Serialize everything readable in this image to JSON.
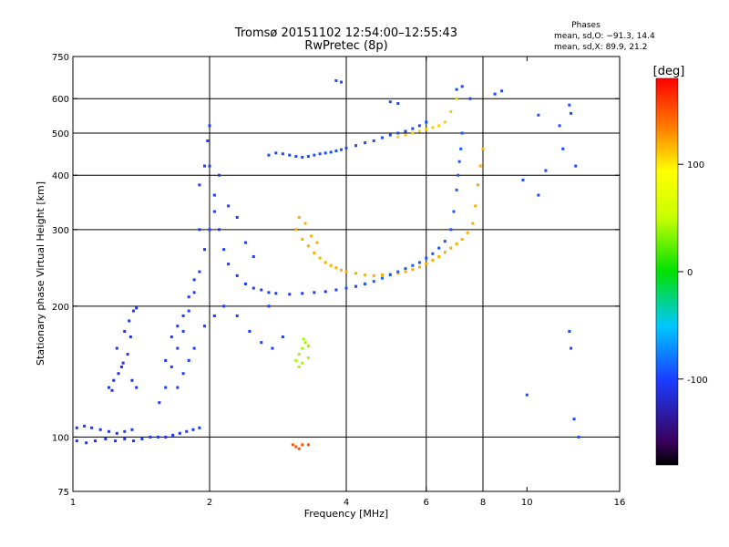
{
  "title": "Tromsø 20151102 12:54:00–12:55:43",
  "subtitle": "RwPretec (8p)",
  "phase_header": {
    "title": "Phases",
    "line_o": "mean, sd,O: −91.3, 14.4",
    "line_x": "mean, sd,X:  89.9, 21.2"
  },
  "chart_data": {
    "type": "scatter",
    "xlabel": "Frequency [MHz]",
    "ylabel": "Stationary phase Virtual Height [km]",
    "xscale": "log",
    "yscale": "log",
    "xlim": [
      1,
      16
    ],
    "ylim": [
      75,
      750
    ],
    "xticks": [
      1,
      2,
      4,
      6,
      8,
      10,
      16
    ],
    "xtick_labels": [
      "1",
      "2",
      "4",
      "6",
      "8",
      "10",
      "16"
    ],
    "xgrid": [
      2,
      4,
      6,
      8
    ],
    "yticks": [
      75,
      100,
      200,
      300,
      400,
      500,
      600,
      750
    ],
    "ytick_labels": [
      "75",
      "100",
      "200",
      "300",
      "400",
      "500",
      "600",
      "750"
    ],
    "ygrid": [
      100,
      200,
      300,
      400,
      500,
      600
    ],
    "colorbar": {
      "label": "[deg]",
      "range": [
        -180,
        180
      ],
      "ticks": [
        100,
        0,
        -100
      ],
      "tick_labels": [
        "100",
        "0",
        "-100"
      ],
      "colormap": "rainbow"
    },
    "series": [
      {
        "points": [
          [
            1.02,
            105
          ],
          [
            1.06,
            106
          ],
          [
            1.1,
            105
          ],
          [
            1.15,
            104
          ],
          [
            1.2,
            103
          ],
          [
            1.25,
            102
          ],
          [
            1.3,
            103
          ],
          [
            1.35,
            104
          ],
          [
            1.02,
            98
          ],
          [
            1.07,
            97
          ],
          [
            1.12,
            98
          ],
          [
            1.18,
            99
          ],
          [
            1.24,
            98
          ],
          [
            1.3,
            99
          ],
          [
            1.36,
            98
          ],
          [
            1.42,
            99
          ],
          [
            1.48,
            100
          ],
          [
            1.54,
            100
          ],
          [
            1.6,
            100
          ],
          [
            1.66,
            101
          ],
          [
            1.72,
            102
          ],
          [
            1.78,
            103
          ],
          [
            1.84,
            104
          ],
          [
            1.9,
            105
          ]
        ],
        "phase": -105
      },
      {
        "points": [
          [
            1.2,
            130
          ],
          [
            1.23,
            135
          ],
          [
            1.26,
            140
          ],
          [
            1.29,
            148
          ],
          [
            1.32,
            155
          ],
          [
            1.3,
            175
          ],
          [
            1.33,
            185
          ],
          [
            1.36,
            195
          ],
          [
            1.38,
            198
          ],
          [
            1.25,
            160
          ],
          [
            1.28,
            145
          ],
          [
            1.35,
            135
          ],
          [
            1.38,
            130
          ],
          [
            1.22,
            128
          ],
          [
            1.34,
            170
          ]
        ],
        "phase": -110
      },
      {
        "points": [
          [
            1.55,
            120
          ],
          [
            1.6,
            130
          ],
          [
            1.65,
            145
          ],
          [
            1.7,
            160
          ],
          [
            1.75,
            175
          ],
          [
            1.8,
            195
          ],
          [
            1.85,
            215
          ],
          [
            1.9,
            240
          ],
          [
            1.95,
            270
          ],
          [
            2.0,
            300
          ],
          [
            2.05,
            330
          ],
          [
            1.9,
            380
          ],
          [
            1.95,
            420
          ],
          [
            1.98,
            480
          ],
          [
            2.0,
            520
          ],
          [
            2.05,
            360
          ],
          [
            2.1,
            300
          ],
          [
            2.15,
            270
          ],
          [
            2.2,
            250
          ],
          [
            2.3,
            235
          ],
          [
            2.4,
            225
          ],
          [
            2.5,
            220
          ],
          [
            2.6,
            218
          ],
          [
            2.7,
            215
          ],
          [
            2.8,
            214
          ],
          [
            3.0,
            213
          ],
          [
            3.2,
            214
          ],
          [
            3.4,
            215
          ],
          [
            3.6,
            216
          ],
          [
            3.8,
            218
          ],
          [
            4.0,
            220
          ],
          [
            4.2,
            222
          ],
          [
            4.4,
            225
          ],
          [
            1.7,
            130
          ],
          [
            1.75,
            140
          ],
          [
            1.8,
            150
          ],
          [
            1.85,
            160
          ],
          [
            1.95,
            180
          ],
          [
            2.05,
            190
          ],
          [
            2.15,
            200
          ],
          [
            2.3,
            190
          ],
          [
            2.45,
            175
          ],
          [
            2.6,
            165
          ],
          [
            2.75,
            160
          ],
          [
            2.9,
            170
          ],
          [
            2.7,
            200
          ],
          [
            2.5,
            260
          ],
          [
            2.4,
            280
          ],
          [
            2.3,
            320
          ],
          [
            2.2,
            340
          ],
          [
            2.1,
            400
          ],
          [
            2.0,
            420
          ],
          [
            1.9,
            300
          ],
          [
            1.85,
            230
          ],
          [
            1.8,
            210
          ],
          [
            1.75,
            190
          ],
          [
            1.7,
            180
          ],
          [
            1.65,
            170
          ],
          [
            1.6,
            150
          ]
        ],
        "phase": -100
      },
      {
        "points": [
          [
            2.7,
            445
          ],
          [
            2.8,
            450
          ],
          [
            2.9,
            448
          ],
          [
            3.0,
            445
          ],
          [
            3.1,
            442
          ],
          [
            3.2,
            440
          ],
          [
            3.3,
            442
          ],
          [
            3.4,
            445
          ],
          [
            3.5,
            448
          ],
          [
            3.6,
            450
          ],
          [
            3.7,
            452
          ],
          [
            3.8,
            455
          ],
          [
            3.9,
            458
          ],
          [
            4.0,
            462
          ],
          [
            4.2,
            468
          ],
          [
            4.4,
            475
          ],
          [
            4.6,
            480
          ],
          [
            4.8,
            488
          ],
          [
            5.0,
            495
          ],
          [
            5.2,
            500
          ],
          [
            5.4,
            505
          ],
          [
            5.6,
            512
          ],
          [
            5.8,
            520
          ],
          [
            6.0,
            530
          ]
        ],
        "phase": -95
      },
      {
        "points": [
          [
            5.2,
            490
          ],
          [
            5.4,
            495
          ],
          [
            5.6,
            500
          ],
          [
            5.8,
            505
          ],
          [
            6.0,
            510
          ],
          [
            6.2,
            515
          ],
          [
            6.4,
            520
          ],
          [
            6.6,
            530
          ],
          [
            6.8,
            560
          ],
          [
            7.0,
            600
          ]
        ],
        "phase": 110
      },
      {
        "points": [
          [
            3.1,
            300
          ],
          [
            3.2,
            285
          ],
          [
            3.3,
            275
          ],
          [
            3.4,
            265
          ],
          [
            3.5,
            258
          ],
          [
            3.6,
            252
          ],
          [
            3.7,
            248
          ],
          [
            3.8,
            245
          ],
          [
            3.9,
            242
          ],
          [
            4.0,
            240
          ],
          [
            4.2,
            238
          ],
          [
            4.4,
            236
          ],
          [
            4.6,
            235
          ],
          [
            4.8,
            236
          ],
          [
            5.0,
            237
          ],
          [
            5.2,
            238
          ],
          [
            5.4,
            240
          ],
          [
            5.6,
            243
          ],
          [
            5.8,
            246
          ],
          [
            6.0,
            250
          ],
          [
            6.2,
            255
          ],
          [
            6.4,
            260
          ],
          [
            6.6,
            266
          ],
          [
            6.8,
            272
          ],
          [
            7.0,
            278
          ],
          [
            7.2,
            285
          ],
          [
            7.4,
            295
          ],
          [
            7.6,
            310
          ],
          [
            7.7,
            340
          ],
          [
            7.8,
            380
          ],
          [
            7.9,
            420
          ],
          [
            8.0,
            460
          ],
          [
            3.15,
            320
          ],
          [
            3.25,
            310
          ],
          [
            3.35,
            290
          ],
          [
            3.45,
            280
          ]
        ],
        "phase": 120
      },
      {
        "points": [
          [
            4.0,
            220
          ],
          [
            4.2,
            222
          ],
          [
            4.4,
            225
          ],
          [
            4.6,
            228
          ],
          [
            4.8,
            232
          ],
          [
            5.0,
            236
          ],
          [
            5.2,
            240
          ],
          [
            5.4,
            244
          ],
          [
            5.6,
            248
          ],
          [
            5.8,
            252
          ],
          [
            6.0,
            258
          ],
          [
            6.2,
            264
          ],
          [
            6.4,
            272
          ],
          [
            6.6,
            282
          ],
          [
            6.8,
            300
          ],
          [
            6.9,
            330
          ],
          [
            7.0,
            370
          ],
          [
            7.05,
            400
          ],
          [
            7.1,
            430
          ],
          [
            7.15,
            460
          ],
          [
            7.2,
            500
          ]
        ],
        "phase": -90
      },
      {
        "points": [
          [
            3.1,
            150
          ],
          [
            3.15,
            155
          ],
          [
            3.2,
            160
          ],
          [
            3.25,
            165
          ],
          [
            3.3,
            162
          ],
          [
            3.2,
            148
          ],
          [
            3.15,
            145
          ],
          [
            3.3,
            152
          ],
          [
            3.22,
            168
          ]
        ],
        "phase": 40
      },
      {
        "points": [
          [
            3.05,
            96
          ],
          [
            3.1,
            95
          ],
          [
            3.15,
            94
          ],
          [
            3.2,
            96
          ],
          [
            3.3,
            96
          ]
        ],
        "phase": 150
      },
      {
        "points": [
          [
            3.8,
            660
          ],
          [
            3.9,
            655
          ],
          [
            5.0,
            590
          ],
          [
            5.2,
            585
          ],
          [
            7.0,
            630
          ],
          [
            7.2,
            640
          ],
          [
            7.5,
            600
          ],
          [
            8.5,
            615
          ],
          [
            8.8,
            625
          ],
          [
            10.6,
            550
          ],
          [
            11.8,
            520
          ],
          [
            12.5,
            555
          ],
          [
            12.4,
            580
          ],
          [
            12.0,
            460
          ],
          [
            12.8,
            420
          ],
          [
            9.8,
            390
          ],
          [
            10.6,
            360
          ],
          [
            11.0,
            410
          ],
          [
            12.4,
            175
          ],
          [
            12.5,
            160
          ],
          [
            12.7,
            110
          ],
          [
            13.0,
            100
          ],
          [
            10.0,
            125
          ]
        ],
        "phase": -95
      }
    ]
  }
}
